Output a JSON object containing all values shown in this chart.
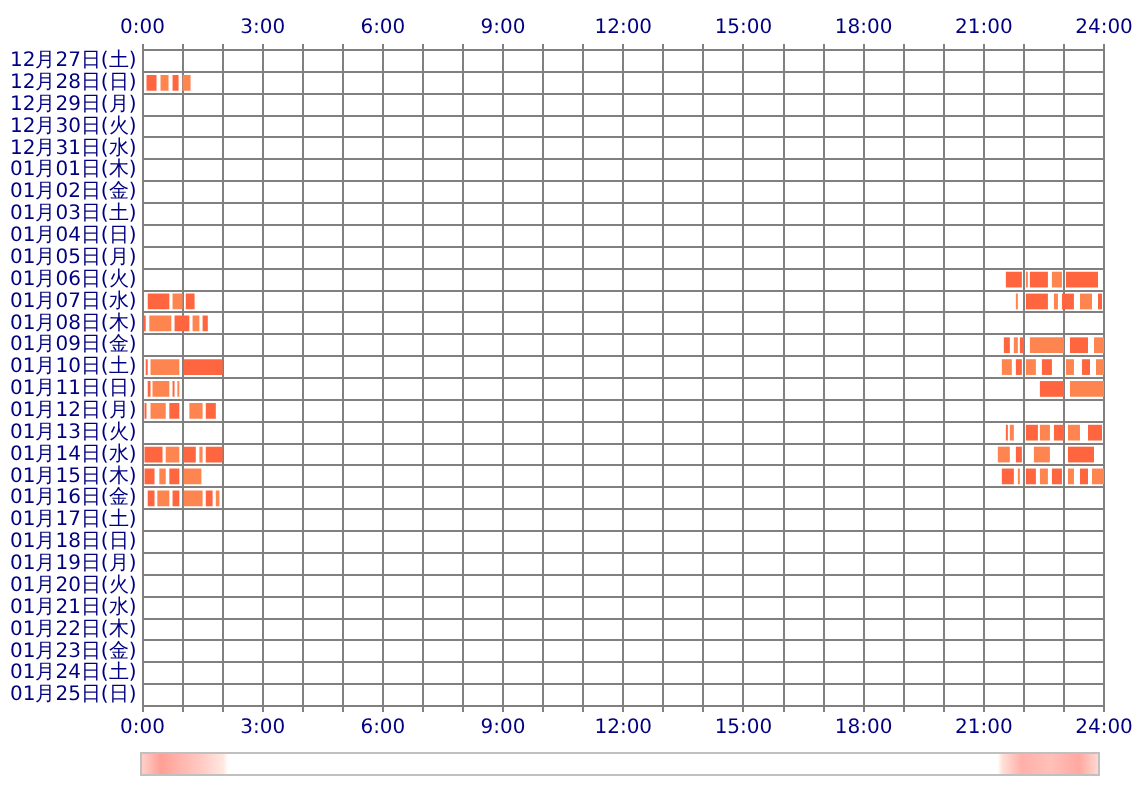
{
  "chart_data": {
    "type": "bar",
    "orientation": "horizontal",
    "grid": true,
    "legend": false,
    "categories": [
      "12月27日(土)",
      "12月28日(日)",
      "12月29日(月)",
      "12月30日(火)",
      "12月31日(水)",
      "01月01日(木)",
      "01月02日(金)",
      "01月03日(土)",
      "01月04日(日)",
      "01月05日(月)",
      "01月06日(火)",
      "01月07日(水)",
      "01月08日(木)",
      "01月09日(金)",
      "01月10日(土)",
      "01月11日(日)",
      "01月12日(月)",
      "01月13日(火)",
      "01月14日(水)",
      "01月15日(木)",
      "01月16日(金)",
      "01月17日(土)",
      "01月18日(日)",
      "01月19日(月)",
      "01月20日(火)",
      "01月21日(水)",
      "01月22日(木)",
      "01月23日(金)",
      "01月24日(土)",
      "01月25日(日)"
    ],
    "xlim": [
      0,
      24
    ],
    "xticks": [
      {
        "value": 0,
        "label": "0:00"
      },
      {
        "value": 1,
        "label": null
      },
      {
        "value": 2,
        "label": null
      },
      {
        "value": 3,
        "label": "3:00"
      },
      {
        "value": 4,
        "label": null
      },
      {
        "value": 5,
        "label": null
      },
      {
        "value": 6,
        "label": "6:00"
      },
      {
        "value": 7,
        "label": null
      },
      {
        "value": 8,
        "label": null
      },
      {
        "value": 9,
        "label": "9:00"
      },
      {
        "value": 10,
        "label": null
      },
      {
        "value": 11,
        "label": null
      },
      {
        "value": 12,
        "label": "12:00"
      },
      {
        "value": 13,
        "label": null
      },
      {
        "value": 14,
        "label": null
      },
      {
        "value": 15,
        "label": "15:00"
      },
      {
        "value": 16,
        "label": null
      },
      {
        "value": 17,
        "label": null
      },
      {
        "value": 18,
        "label": "18:00"
      },
      {
        "value": 19,
        "label": null
      },
      {
        "value": 20,
        "label": null
      },
      {
        "value": 21,
        "label": "21:00"
      },
      {
        "value": 22,
        "label": null
      },
      {
        "value": 23,
        "label": null
      },
      {
        "value": 24,
        "label": "24:00"
      }
    ],
    "x2lim": [
      0,
      24
    ],
    "x2ticks": [
      {
        "value": 0,
        "label": "0:00"
      },
      {
        "value": 1,
        "label": null
      },
      {
        "value": 2,
        "label": null
      },
      {
        "value": 3,
        "label": "3:00"
      },
      {
        "value": 4,
        "label": null
      },
      {
        "value": 5,
        "label": null
      },
      {
        "value": 6,
        "label": "6:00"
      },
      {
        "value": 7,
        "label": null
      },
      {
        "value": 8,
        "label": null
      },
      {
        "value": 9,
        "label": "9:00"
      },
      {
        "value": 10,
        "label": null
      },
      {
        "value": 11,
        "label": null
      },
      {
        "value": 12,
        "label": "12:00"
      },
      {
        "value": 13,
        "label": null
      },
      {
        "value": 14,
        "label": null
      },
      {
        "value": 15,
        "label": "15:00"
      },
      {
        "value": 16,
        "label": null
      },
      {
        "value": 17,
        "label": null
      },
      {
        "value": 18,
        "label": "18:00"
      },
      {
        "value": 19,
        "label": null
      },
      {
        "value": 20,
        "label": null
      },
      {
        "value": 21,
        "label": "21:00"
      },
      {
        "value": 22,
        "label": null
      },
      {
        "value": 23,
        "label": null
      },
      {
        "value": 24,
        "label": "24:00"
      }
    ],
    "series": [
      {
        "color": "#ff6640",
        "base": [
          null,
          0.1,
          null,
          null,
          null,
          null,
          null,
          null,
          null,
          null,
          21.55,
          0.13,
          0.03,
          21.5,
          0.08,
          0.13,
          0.05,
          21.55,
          0.05,
          0.05,
          0.13,
          null,
          null,
          null,
          null,
          null,
          null,
          null,
          null,
          null
        ],
        "values": [
          null,
          0.25,
          null,
          null,
          null,
          null,
          null,
          null,
          null,
          null,
          0.4,
          0.54,
          0.05,
          0.15,
          0.05,
          0.07,
          0.05,
          0.05,
          0.45,
          0.25,
          0.17,
          null,
          null,
          null,
          null,
          null,
          null,
          null,
          null,
          null
        ]
      },
      {
        "color": "#ff8550",
        "base": [
          null,
          0.45,
          null,
          null,
          null,
          null,
          null,
          null,
          null,
          null,
          22.05,
          0.75,
          0.17,
          21.75,
          0.2,
          0.25,
          0.2,
          21.65,
          0.58,
          0.42,
          0.37,
          null,
          null,
          null,
          null,
          null,
          null,
          null,
          null,
          null
        ],
        "values": [
          null,
          0.2,
          null,
          null,
          null,
          null,
          null,
          null,
          null,
          null,
          0.05,
          0.25,
          0.55,
          0.1,
          0.72,
          0.42,
          0.38,
          0.1,
          0.34,
          0.16,
          0.3,
          null,
          null,
          null,
          null,
          null,
          null,
          null,
          null,
          null
        ]
      },
      {
        "color": "#ff6640",
        "base": [
          null,
          0.75,
          null,
          null,
          null,
          null,
          null,
          null,
          null,
          null,
          22.15,
          1.08,
          0.8,
          21.9,
          1.03,
          0.75,
          0.67,
          22.05,
          1.03,
          0.67,
          0.75,
          null,
          null,
          null,
          null,
          null,
          null,
          null,
          null,
          null
        ],
        "values": [
          null,
          0.15,
          null,
          null,
          null,
          null,
          null,
          null,
          null,
          null,
          0.45,
          0.22,
          0.37,
          0.1,
          0.97,
          0.05,
          0.25,
          0.3,
          0.3,
          0.25,
          0.17,
          null,
          null,
          null,
          null,
          null,
          null,
          null,
          null,
          null
        ]
      },
      {
        "color": "#ff8550",
        "base": [
          null,
          1.0,
          null,
          null,
          null,
          null,
          null,
          null,
          null,
          null,
          22.7,
          21.8,
          1.25,
          22.15,
          21.45,
          0.87,
          1.17,
          22.4,
          1.42,
          1.03,
          1.03,
          null,
          null,
          null,
          null,
          null,
          null,
          null,
          null,
          null
        ],
        "values": [
          null,
          0.2,
          null,
          null,
          null,
          null,
          null,
          null,
          null,
          null,
          0.25,
          0.05,
          0.17,
          0.85,
          0.25,
          0.05,
          0.33,
          0.25,
          0.08,
          0.44,
          0.47,
          null,
          null,
          null,
          null,
          null,
          null,
          null,
          null,
          null
        ]
      },
      {
        "color": "#ff6640",
        "base": [
          null,
          null,
          null,
          null,
          null,
          null,
          null,
          null,
          null,
          null,
          23.05,
          22.05,
          1.5,
          23.15,
          21.8,
          22.4,
          1.58,
          22.75,
          1.58,
          21.45,
          1.58,
          null,
          null,
          null,
          null,
          null,
          null,
          null,
          null,
          null
        ],
        "values": [
          null,
          null,
          null,
          null,
          null,
          null,
          null,
          null,
          null,
          null,
          0.8,
          0.55,
          0.13,
          0.45,
          0.15,
          0.6,
          0.25,
          0.25,
          0.42,
          0.3,
          0.17,
          null,
          null,
          null,
          null,
          null,
          null,
          null,
          null,
          null
        ]
      },
      {
        "color": "#ff8550",
        "base": [
          null,
          null,
          null,
          null,
          null,
          null,
          null,
          null,
          null,
          null,
          null,
          22.75,
          null,
          23.75,
          22.05,
          23.15,
          null,
          23.1,
          21.35,
          21.85,
          1.83,
          null,
          null,
          null,
          null,
          null,
          null,
          null,
          null,
          null
        ],
        "values": [
          null,
          null,
          null,
          null,
          null,
          null,
          null,
          null,
          null,
          null,
          null,
          0.1,
          null,
          0.25,
          0.25,
          0.85,
          null,
          0.3,
          0.3,
          0.05,
          0.09,
          null,
          null,
          null,
          null,
          null,
          null,
          null,
          null,
          null
        ]
      },
      {
        "color": "#ff6640",
        "base": [
          null,
          null,
          null,
          null,
          null,
          null,
          null,
          null,
          null,
          null,
          null,
          22.95,
          null,
          null,
          22.45,
          null,
          null,
          23.6,
          21.8,
          22.05,
          null,
          null,
          null,
          null,
          null,
          null,
          null,
          null,
          null,
          null
        ],
        "values": [
          null,
          null,
          null,
          null,
          null,
          null,
          null,
          null,
          null,
          null,
          null,
          0.3,
          null,
          null,
          0.25,
          null,
          null,
          0.35,
          0.15,
          0.25,
          null,
          null,
          null,
          null,
          null,
          null,
          null,
          null,
          null,
          null
        ]
      },
      {
        "color": "#ff8550",
        "base": [
          null,
          null,
          null,
          null,
          null,
          null,
          null,
          null,
          null,
          null,
          null,
          23.4,
          null,
          null,
          23.05,
          null,
          null,
          null,
          22.25,
          22.4,
          null,
          null,
          null,
          null,
          null,
          null,
          null,
          null,
          null,
          null
        ],
        "values": [
          null,
          null,
          null,
          null,
          null,
          null,
          null,
          null,
          null,
          null,
          null,
          0.3,
          null,
          null,
          0.2,
          null,
          null,
          null,
          0.4,
          0.2,
          null,
          null,
          null,
          null,
          null,
          null,
          null,
          null,
          null,
          null
        ]
      },
      {
        "color": "#ff6640",
        "base": [
          null,
          null,
          null,
          null,
          null,
          null,
          null,
          null,
          null,
          null,
          null,
          23.85,
          null,
          null,
          23.45,
          null,
          null,
          null,
          23.1,
          22.7,
          null,
          null,
          null,
          null,
          null,
          null,
          null,
          null,
          null,
          null
        ],
        "values": [
          null,
          null,
          null,
          null,
          null,
          null,
          null,
          null,
          null,
          null,
          null,
          0.1,
          null,
          null,
          0.2,
          null,
          null,
          null,
          0.65,
          0.25,
          null,
          null,
          null,
          null,
          null,
          null,
          null,
          null,
          null,
          null
        ]
      },
      {
        "color": "#ff8550",
        "base": [
          null,
          null,
          null,
          null,
          null,
          null,
          null,
          null,
          null,
          null,
          null,
          null,
          null,
          null,
          23.8,
          null,
          null,
          null,
          null,
          23.1,
          null,
          null,
          null,
          null,
          null,
          null,
          null,
          null,
          null,
          null
        ],
        "values": [
          null,
          null,
          null,
          null,
          null,
          null,
          null,
          null,
          null,
          null,
          null,
          null,
          null,
          null,
          0.2,
          null,
          null,
          null,
          null,
          0.15,
          null,
          null,
          null,
          null,
          null,
          null,
          null,
          null,
          null,
          null
        ]
      },
      {
        "color": "#ff6640",
        "base": [
          null,
          null,
          null,
          null,
          null,
          null,
          null,
          null,
          null,
          null,
          null,
          null,
          null,
          null,
          null,
          null,
          null,
          null,
          null,
          23.4,
          null,
          null,
          null,
          null,
          null,
          null,
          null,
          null,
          null,
          null
        ],
        "values": [
          null,
          null,
          null,
          null,
          null,
          null,
          null,
          null,
          null,
          null,
          null,
          null,
          null,
          null,
          null,
          null,
          null,
          null,
          null,
          0.2,
          null,
          null,
          null,
          null,
          null,
          null,
          null,
          null,
          null,
          null
        ]
      },
      {
        "color": "#ff8550",
        "base": [
          null,
          null,
          null,
          null,
          null,
          null,
          null,
          null,
          null,
          null,
          null,
          null,
          null,
          null,
          null,
          null,
          null,
          null,
          null,
          23.7,
          null,
          null,
          null,
          null,
          null,
          null,
          null,
          null,
          null,
          null
        ],
        "values": [
          null,
          null,
          null,
          null,
          null,
          null,
          null,
          null,
          null,
          null,
          null,
          null,
          null,
          null,
          null,
          null,
          null,
          null,
          null,
          0.3,
          null,
          null,
          null,
          null,
          null,
          null,
          null,
          null,
          null,
          null
        ]
      }
    ]
  }
}
